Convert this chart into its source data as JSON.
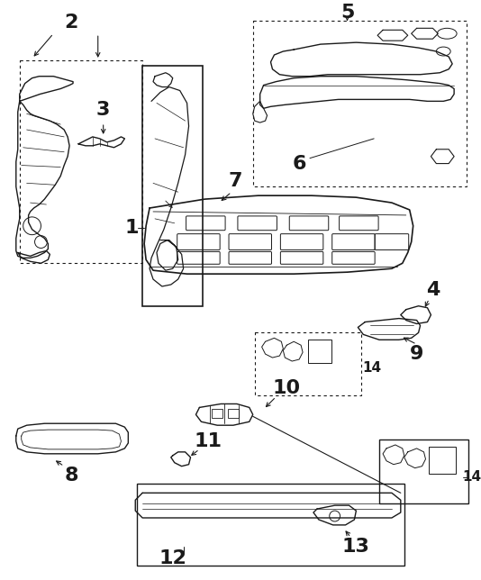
{
  "bg_color": "#ffffff",
  "lc": "#1a1a1a",
  "fig_w": 5.34,
  "fig_h": 6.44,
  "dpi": 100,
  "lw": 1.0,
  "fs": 12
}
